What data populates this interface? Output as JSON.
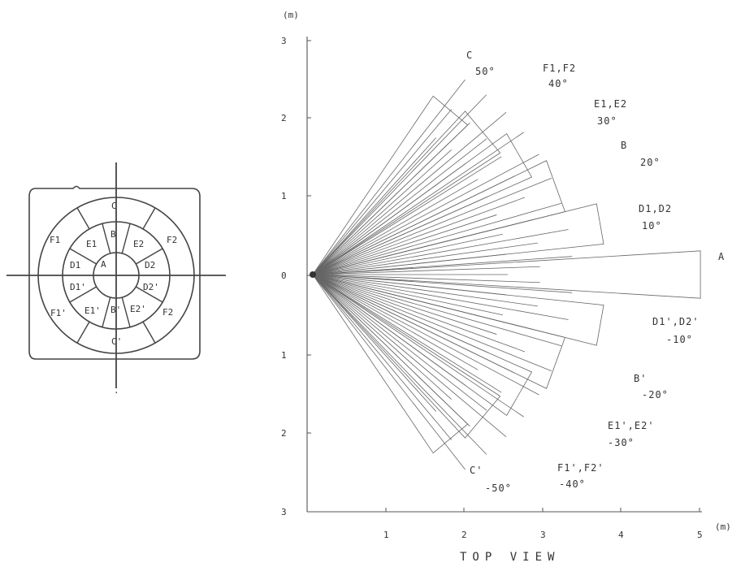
{
  "sensor_diagram": {
    "segments": [
      {
        "label": "C"
      },
      {
        "label": "B"
      },
      {
        "label": "A"
      },
      {
        "label": "F1"
      },
      {
        "label": "E1"
      },
      {
        "label": "E2"
      },
      {
        "label": "F2"
      },
      {
        "label": "D1"
      },
      {
        "label": "D2"
      },
      {
        "label": "D1'"
      },
      {
        "label": "D2'"
      },
      {
        "label": "F1'"
      },
      {
        "label": "E1'"
      },
      {
        "label": "B'"
      },
      {
        "label": "E2'"
      },
      {
        "label": "F2"
      },
      {
        "label": "C'"
      }
    ]
  },
  "plot": {
    "y_unit": "(m)",
    "x_unit": "(m)",
    "title": "TOP VIEW",
    "y_ticks": [
      "3",
      "2",
      "1",
      "0",
      "1",
      "2",
      "3"
    ],
    "x_ticks": [
      "1",
      "2",
      "3",
      "4",
      "5"
    ]
  },
  "beam_labels": [
    {
      "name": "C",
      "angle": "50°"
    },
    {
      "name": "F1,F2",
      "angle": "40°"
    },
    {
      "name": "E1,E2",
      "angle": "30°"
    },
    {
      "name": "B",
      "angle": "20°"
    },
    {
      "name": "D1,D2",
      "angle": "10°"
    },
    {
      "name": "A",
      "angle": ""
    },
    {
      "name": "D1',D2'",
      "angle": "-10°"
    },
    {
      "name": "B'",
      "angle": "-20°"
    },
    {
      "name": "E1',E2'",
      "angle": "-30°"
    },
    {
      "name": "F1',F2'",
      "angle": "-40°"
    },
    {
      "name": "C'",
      "angle": "-50°"
    }
  ]
}
